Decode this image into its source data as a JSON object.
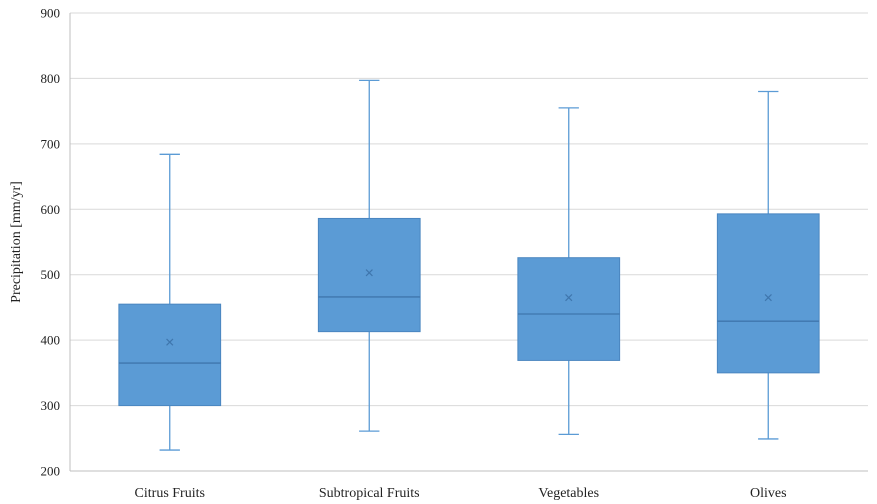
{
  "chart_data": {
    "type": "box",
    "title": "",
    "xlabel": "",
    "ylabel": "Precipitation [mm/yr]",
    "ylim": [
      200,
      900
    ],
    "yticks": [
      200,
      300,
      400,
      500,
      600,
      700,
      800,
      900
    ],
    "grid": true,
    "legend": "none",
    "categories": [
      "Citrus Fruits",
      "Subtropical Fruits",
      "Vegetables",
      "Olives"
    ],
    "boxes": [
      {
        "min": 232,
        "q1": 300,
        "median": 365,
        "q3": 455,
        "max": 684,
        "mean": 397
      },
      {
        "min": 261,
        "q1": 413,
        "median": 466,
        "q3": 586,
        "max": 797,
        "mean": 503
      },
      {
        "min": 256,
        "q1": 369,
        "median": 440,
        "q3": 526,
        "max": 755,
        "mean": 465
      },
      {
        "min": 249,
        "q1": 350,
        "median": 429,
        "q3": 593,
        "max": 780,
        "mean": 465
      }
    ],
    "colors": {
      "box_fill": "#5b9bd5",
      "box_stroke": "#4a86c0",
      "median": "#3f76ad",
      "whisker": "#5b9bd5",
      "mean_marker": "#3f76ad",
      "grid": "#d9d9d9",
      "axis": "#bfbfbf"
    }
  }
}
